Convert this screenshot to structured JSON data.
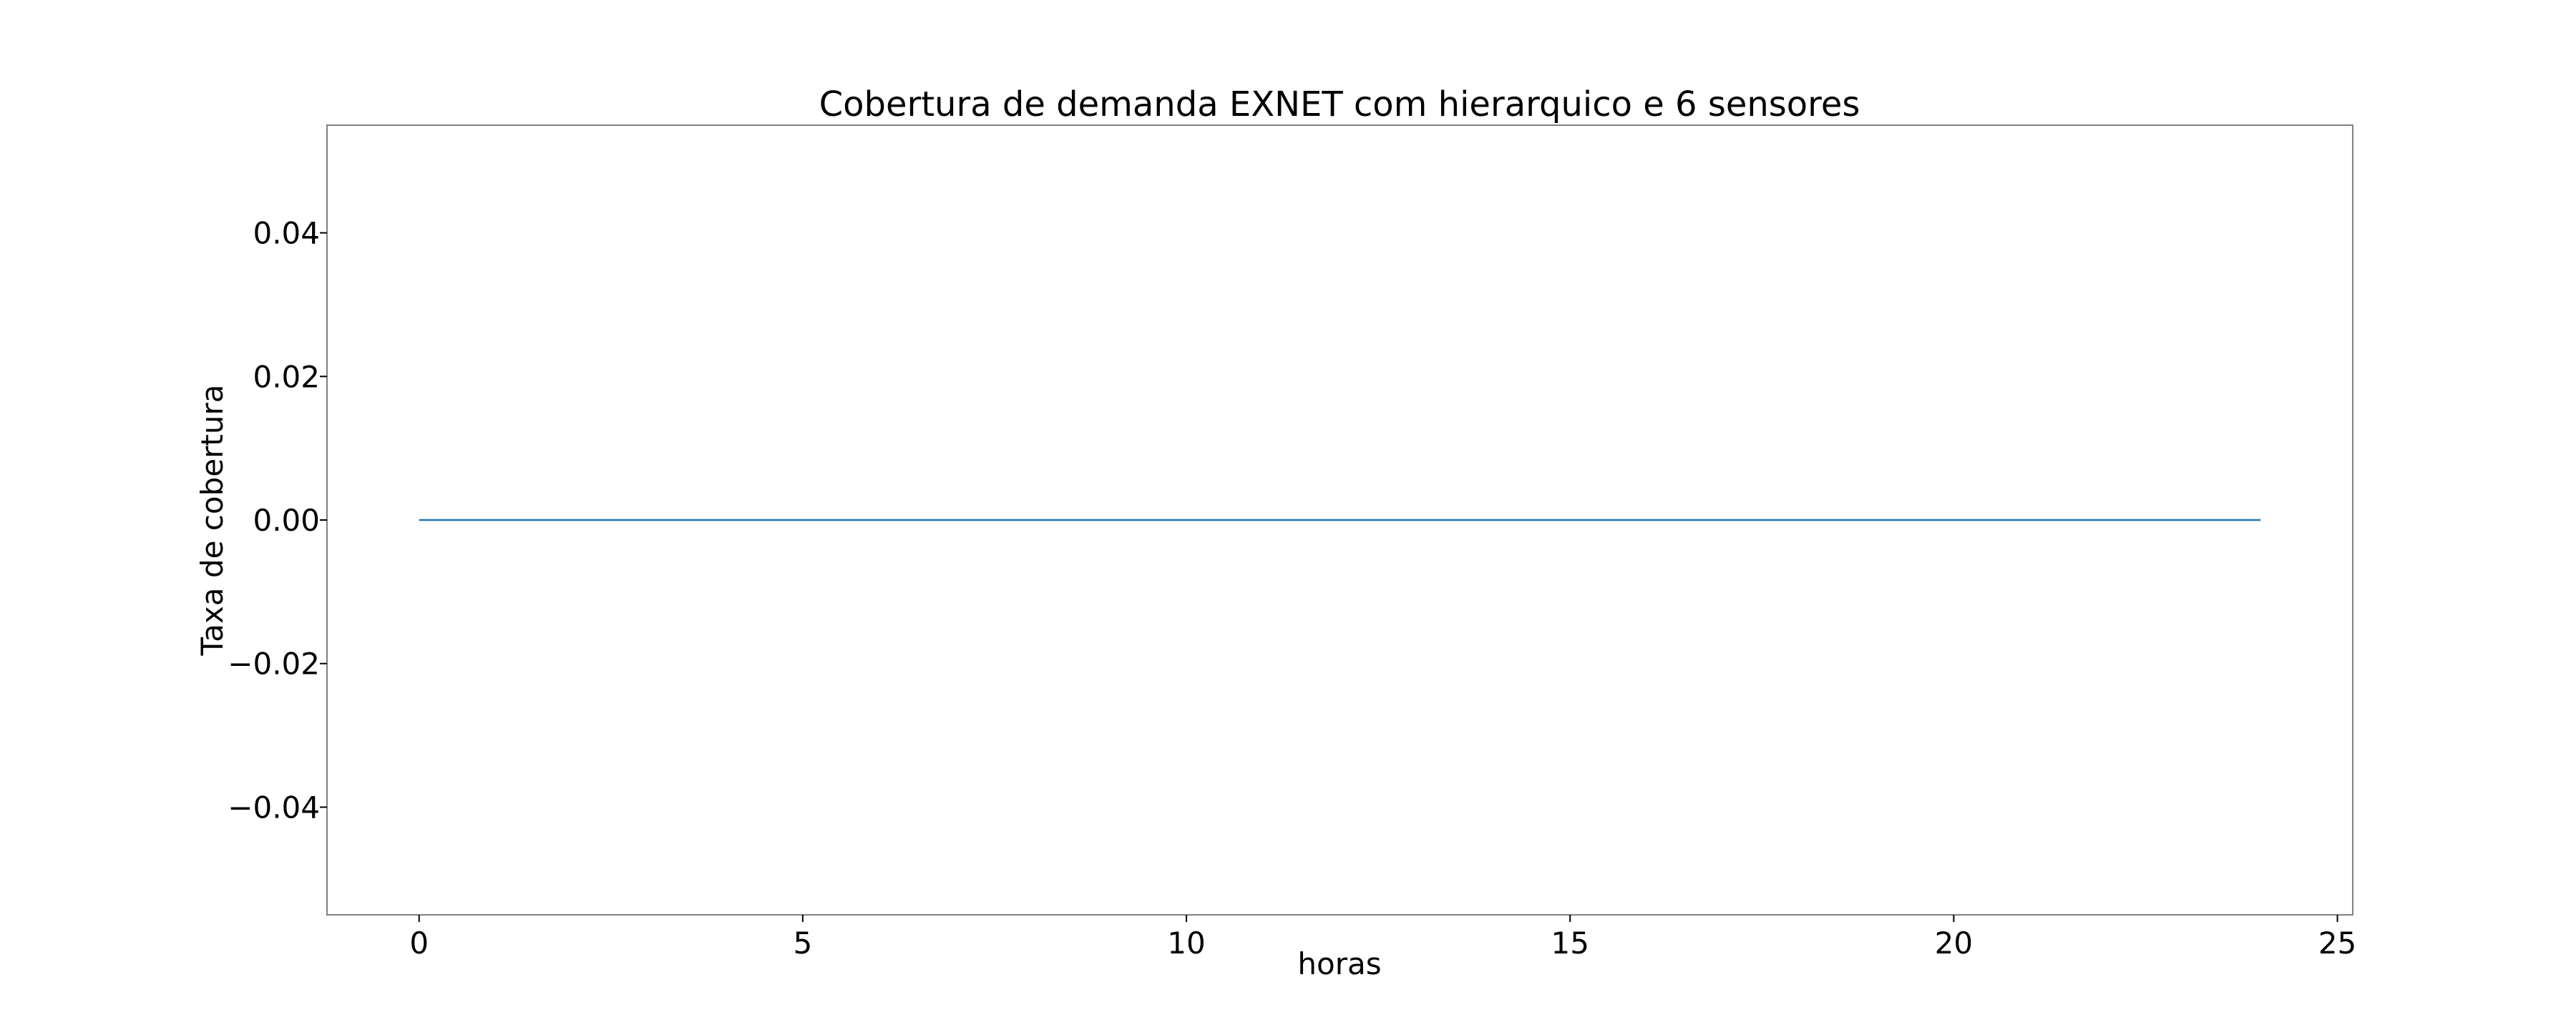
{
  "chart_data": {
    "type": "line",
    "title": "Cobertura de demanda EXNET com hierarquico e 6 sensores",
    "xlabel": "horas",
    "ylabel": "Taxa de cobertura",
    "xlim": [
      -1.2,
      25.2
    ],
    "ylim": [
      -0.055,
      0.055
    ],
    "xticks": [
      0,
      5,
      10,
      15,
      20,
      25
    ],
    "xtick_labels": [
      "0",
      "5",
      "10",
      "15",
      "20",
      "25"
    ],
    "yticks": [
      0.04,
      0.02,
      0.0,
      -0.02,
      -0.04
    ],
    "ytick_labels": [
      "0.04",
      "0.02",
      "0.00",
      "−0.02",
      "−0.04"
    ],
    "grid": false,
    "legend": "none",
    "series": [
      {
        "color": "#1f77b4",
        "x": [
          0,
          24
        ],
        "y": [
          0.0,
          0.0
        ]
      }
    ]
  }
}
